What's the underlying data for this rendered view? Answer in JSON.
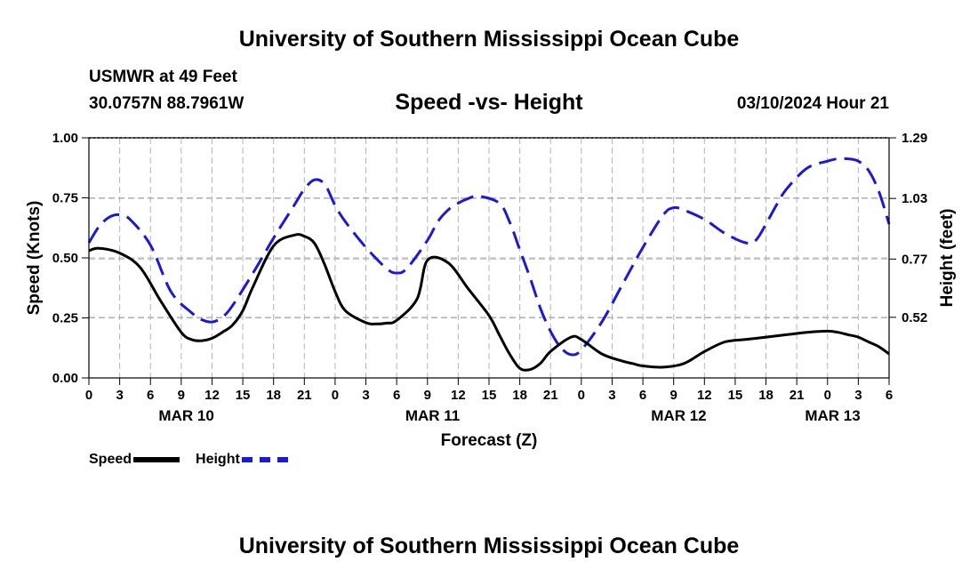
{
  "header": {
    "title": "University of Southern Mississippi Ocean Cube",
    "station": "USMWR at 49 Feet",
    "coordinates": "30.0757N  88.7961W",
    "subtitle": "Speed -vs- Height",
    "timestamp": "03/10/2024 Hour 21"
  },
  "footer": {
    "title": "University of Southern Mississippi Ocean Cube"
  },
  "legend": {
    "speed_label": "Speed",
    "height_label": "Height"
  },
  "colors": {
    "speed": "#000000",
    "height": "#1a1ad6",
    "grid": "#b4b4b4"
  },
  "chart_data": {
    "type": "line",
    "title": "Speed -vs- Height",
    "xlabel": "Forecast (Z)",
    "ylabel": "Speed (Knots)",
    "y2label": "Height (feet)",
    "xlim": [
      0,
      78
    ],
    "ylim": [
      0,
      1
    ],
    "y2lim": [
      0.26,
      1.29
    ],
    "x_ticks": [
      "0",
      "3",
      "6",
      "9",
      "12",
      "15",
      "18",
      "21",
      "0",
      "3",
      "6",
      "9",
      "12",
      "15",
      "18",
      "21",
      "0",
      "3",
      "6",
      "9",
      "12",
      "15",
      "18",
      "21",
      "0",
      "3",
      "6"
    ],
    "y_ticks": [
      "0.00",
      "0.25",
      "0.50",
      "0.75",
      "1.00"
    ],
    "y2_ticks": [
      "0.52",
      "0.77",
      "1.03",
      "1.29"
    ],
    "y2_tick_values": [
      0.52,
      0.77,
      1.03,
      1.29
    ],
    "date_labels": [
      {
        "label": "MAR 10",
        "hour": 9.5
      },
      {
        "label": "MAR 11",
        "hour": 33.5
      },
      {
        "label": "MAR 12",
        "hour": 57.5
      },
      {
        "label": "MAR 13",
        "hour": 72.5
      }
    ],
    "series": [
      {
        "name": "Speed",
        "axis": "left",
        "style": "solid",
        "x": [
          0,
          1,
          3,
          5,
          7,
          9,
          10,
          11,
          12,
          13,
          14,
          15,
          16,
          18,
          20,
          21,
          22,
          23,
          24,
          25,
          27,
          28,
          29,
          30,
          32,
          33,
          35,
          37,
          39,
          40,
          41,
          42,
          43,
          44,
          45,
          47,
          48,
          50,
          52,
          53,
          54,
          56,
          58,
          60,
          62,
          64,
          66,
          68,
          70,
          72,
          73,
          74,
          75,
          76,
          77,
          78
        ],
        "values": [
          0.53,
          0.54,
          0.52,
          0.46,
          0.32,
          0.19,
          0.16,
          0.155,
          0.165,
          0.19,
          0.22,
          0.28,
          0.38,
          0.55,
          0.595,
          0.59,
          0.56,
          0.47,
          0.36,
          0.28,
          0.23,
          0.225,
          0.228,
          0.24,
          0.33,
          0.49,
          0.48,
          0.37,
          0.26,
          0.18,
          0.1,
          0.04,
          0.035,
          0.06,
          0.11,
          0.17,
          0.16,
          0.1,
          0.07,
          0.06,
          0.05,
          0.045,
          0.06,
          0.11,
          0.15,
          0.16,
          0.17,
          0.18,
          0.19,
          0.195,
          0.19,
          0.18,
          0.17,
          0.15,
          0.13,
          0.1
        ]
      },
      {
        "name": "Height",
        "axis": "right",
        "style": "dashed",
        "x": [
          0,
          1,
          2,
          3,
          4,
          6,
          8,
          10,
          11,
          12,
          13,
          14,
          16,
          18,
          20,
          21,
          22,
          23,
          24,
          25,
          27,
          29,
          30,
          31,
          33,
          34,
          35,
          36,
          37,
          38,
          40,
          41,
          42,
          43,
          44,
          45,
          46,
          47,
          48,
          50,
          52,
          54,
          56,
          57,
          58,
          60,
          62,
          64,
          65,
          66,
          67,
          68,
          70,
          72,
          73,
          74,
          75,
          76,
          77,
          78
        ],
        "values": [
          0.84,
          0.91,
          0.95,
          0.96,
          0.94,
          0.83,
          0.63,
          0.54,
          0.51,
          0.5,
          0.52,
          0.57,
          0.71,
          0.86,
          1.0,
          1.07,
          1.11,
          1.09,
          1.0,
          0.93,
          0.82,
          0.73,
          0.71,
          0.73,
          0.85,
          0.93,
          0.98,
          1.01,
          1.03,
          1.04,
          1.01,
          0.93,
          0.81,
          0.69,
          0.56,
          0.46,
          0.39,
          0.36,
          0.38,
          0.5,
          0.66,
          0.82,
          0.96,
          0.99,
          0.98,
          0.94,
          0.88,
          0.84,
          0.85,
          0.92,
          1.0,
          1.07,
          1.16,
          1.19,
          1.2,
          1.2,
          1.19,
          1.15,
          1.06,
          0.92
        ]
      }
    ]
  }
}
